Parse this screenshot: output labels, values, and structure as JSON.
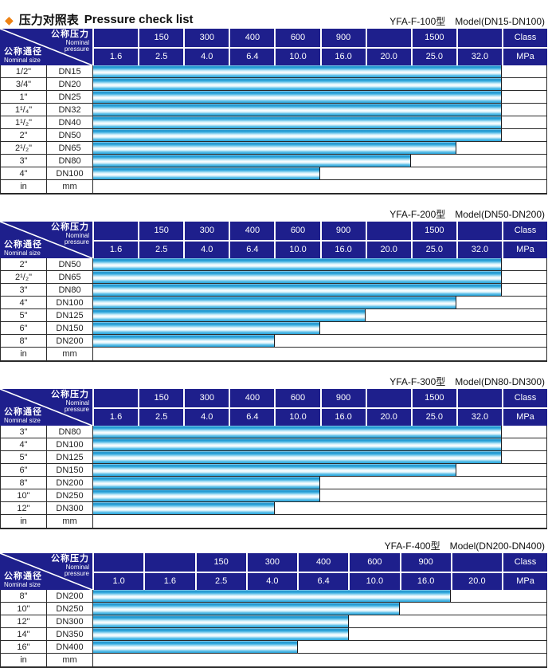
{
  "page": {
    "title_zh": "压力对照表",
    "title_en": "Pressure check list",
    "colors": {
      "header_bg": "#1e1f8c",
      "diamond": "#ee8214",
      "bar_cyan": "#29a8de",
      "bar_deep_cyan": "#1590cb",
      "bar_highlight": "#ffffff",
      "grid_border": "#2a2a2a"
    }
  },
  "header_labels": {
    "pressure_zh": "公称压力",
    "pressure_en_line1": "Nominal",
    "pressure_en_line2": "pressure",
    "size_zh": "公称通径",
    "size_en": "Nominal size",
    "class_label": "Class",
    "unit_label": "MPa"
  },
  "tables": [
    {
      "model": "YFA-F-100型",
      "model_range": "Model(DN15-DN100)",
      "class_row": [
        "",
        "150",
        "300",
        "400",
        "600",
        "900",
        "",
        "1500",
        ""
      ],
      "mpa_row": [
        "1.6",
        "2.5",
        "4.0",
        "6.4",
        "10.0",
        "16.0",
        "20.0",
        "25.0",
        "32.0"
      ],
      "rows": [
        {
          "in": "1/2\"",
          "mm": "DN15",
          "bars": 9
        },
        {
          "in": "3/4\"",
          "mm": "DN20",
          "bars": 9
        },
        {
          "in": "1\"",
          "mm": "DN25",
          "bars": 9
        },
        {
          "in": "1¹/₄\"",
          "mm": "DN32",
          "bars": 9
        },
        {
          "in": "1¹/₂\"",
          "mm": "DN40",
          "bars": 9
        },
        {
          "in": "2\"",
          "mm": "DN50",
          "bars": 9
        },
        {
          "in": "2¹/₂\"",
          "mm": "DN65",
          "bars": 8
        },
        {
          "in": "3\"",
          "mm": "DN80",
          "bars": 7
        },
        {
          "in": "4\"",
          "mm": "DN100",
          "bars": 5
        },
        {
          "in": "in",
          "mm": "mm",
          "bars": 0
        }
      ]
    },
    {
      "model": "YFA-F-200型",
      "model_range": "Model(DN50-DN200)",
      "class_row": [
        "",
        "150",
        "300",
        "400",
        "600",
        "900",
        "",
        "1500",
        ""
      ],
      "mpa_row": [
        "1.6",
        "2.5",
        "4.0",
        "6.4",
        "10.0",
        "16.0",
        "20.0",
        "25.0",
        "32.0"
      ],
      "rows": [
        {
          "in": "2\"",
          "mm": "DN50",
          "bars": 9
        },
        {
          "in": "2¹/₂\"",
          "mm": "DN65",
          "bars": 9
        },
        {
          "in": "3\"",
          "mm": "DN80",
          "bars": 9
        },
        {
          "in": "4\"",
          "mm": "DN100",
          "bars": 8
        },
        {
          "in": "5\"",
          "mm": "DN125",
          "bars": 6
        },
        {
          "in": "6\"",
          "mm": "DN150",
          "bars": 5
        },
        {
          "in": "8\"",
          "mm": "DN200",
          "bars": 4
        },
        {
          "in": "in",
          "mm": "mm",
          "bars": 0
        }
      ]
    },
    {
      "model": "YFA-F-300型",
      "model_range": "Model(DN80-DN300)",
      "class_row": [
        "",
        "150",
        "300",
        "400",
        "600",
        "900",
        "",
        "1500",
        ""
      ],
      "mpa_row": [
        "1.6",
        "2.5",
        "4.0",
        "6.4",
        "10.0",
        "16.0",
        "20.0",
        "25.0",
        "32.0"
      ],
      "rows": [
        {
          "in": "3\"",
          "mm": "DN80",
          "bars": 9
        },
        {
          "in": "4\"",
          "mm": "DN100",
          "bars": 9
        },
        {
          "in": "5\"",
          "mm": "DN125",
          "bars": 9
        },
        {
          "in": "6\"",
          "mm": "DN150",
          "bars": 8
        },
        {
          "in": "8\"",
          "mm": "DN200",
          "bars": 5
        },
        {
          "in": "10\"",
          "mm": "DN250",
          "bars": 5
        },
        {
          "in": "12\"",
          "mm": "DN300",
          "bars": 4
        },
        {
          "in": "in",
          "mm": "mm",
          "bars": 0
        }
      ]
    },
    {
      "model": "YFA-F-400型",
      "model_range": "Model(DN200-DN400)",
      "class_row": [
        "",
        "",
        "150",
        "300",
        "400",
        "600",
        "900",
        ""
      ],
      "mpa_row": [
        "1.0",
        "1.6",
        "2.5",
        "4.0",
        "6.4",
        "10.0",
        "16.0",
        "20.0"
      ],
      "rows": [
        {
          "in": "8\"",
          "mm": "DN200",
          "bars": 7
        },
        {
          "in": "10\"",
          "mm": "DN250",
          "bars": 6
        },
        {
          "in": "12\"",
          "mm": "DN300",
          "bars": 5
        },
        {
          "in": "14\"",
          "mm": "DN350",
          "bars": 5
        },
        {
          "in": "16\"",
          "mm": "DN400",
          "bars": 4
        },
        {
          "in": "in",
          "mm": "mm",
          "bars": 0
        }
      ]
    }
  ]
}
